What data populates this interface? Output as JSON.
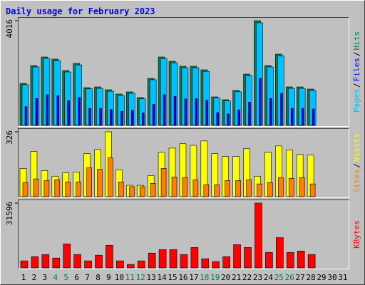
{
  "title": "Daily usage for February 2023",
  "legend_separator": "/",
  "categories": [
    "1",
    "2",
    "3",
    "4",
    "5",
    "6",
    "7",
    "8",
    "9",
    "10",
    "11",
    "12",
    "13",
    "14",
    "15",
    "16",
    "17",
    "18",
    "19",
    "20",
    "21",
    "22",
    "23",
    "24",
    "25",
    "26",
    "27",
    "28",
    "29",
    "30",
    "31"
  ],
  "category_colors": [
    "#000000",
    "#000000",
    "#000000",
    "#008040",
    "#008040",
    "#000000",
    "#000000",
    "#000000",
    "#000000",
    "#000000",
    "#008040",
    "#008040",
    "#000000",
    "#000000",
    "#000000",
    "#000000",
    "#000000",
    "#008040",
    "#008040",
    "#000000",
    "#000000",
    "#000000",
    "#000000",
    "#000000",
    "#008040",
    "#008040",
    "#000000",
    "#000000",
    "#000000",
    "#000000",
    "#000000"
  ],
  "chart_data": [
    {
      "type": "bar",
      "ylim": [
        0,
        4016
      ],
      "yticks": [
        4016
      ],
      "series": [
        {
          "name": "Hits",
          "color": "#00805c",
          "values": [
            1611,
            2295,
            2623,
            2541,
            2104,
            2377,
            1448,
            1475,
            1366,
            1202,
            1284,
            1066,
            1803,
            2623,
            2459,
            2268,
            2268,
            2131,
            1093,
            984,
            1339,
            1967,
            4016,
            2295,
            2732,
            1475,
            1475,
            1393,
            null,
            null,
            null
          ]
        },
        {
          "name": "Pages",
          "color": "#00c0ff",
          "values": [
            1560,
            2240,
            2570,
            2480,
            2050,
            2320,
            1400,
            1420,
            1310,
            1150,
            1230,
            1020,
            1750,
            2560,
            2400,
            2210,
            2210,
            2070,
            1050,
            940,
            1290,
            1910,
            3934,
            2240,
            2670,
            1420,
            1420,
            1340,
            null,
            null,
            null
          ]
        },
        {
          "name": "Files",
          "color": "#0000ff",
          "values": [
            720,
            1030,
            1180,
            1140,
            950,
            1070,
            650,
            660,
            610,
            540,
            580,
            480,
            810,
            1180,
            1110,
            1020,
            1020,
            960,
            490,
            440,
            600,
            890,
            1810,
            1030,
            1230,
            660,
            660,
            630,
            null,
            null,
            null
          ]
        }
      ]
    },
    {
      "type": "bar",
      "ylim": [
        0,
        326
      ],
      "yticks": [
        326
      ],
      "series": [
        {
          "name": "Visits",
          "color": "#ffff00",
          "values": [
            142,
            227,
            131,
            103,
            120,
            124,
            216,
            237,
            326,
            135,
            57,
            57,
            106,
            223,
            244,
            266,
            258,
            280,
            216,
            202,
            202,
            241,
            103,
            223,
            255,
            234,
            212,
            209,
            null,
            null,
            null
          ]
        },
        {
          "name": "Sites",
          "color": "#ff8000",
          "values": [
            71,
            89,
            81,
            85,
            74,
            74,
            145,
            138,
            195,
            74,
            50,
            50,
            67,
            142,
            99,
            96,
            85,
            60,
            60,
            81,
            81,
            85,
            64,
            71,
            96,
            92,
            96,
            64,
            null,
            null,
            null
          ]
        }
      ]
    },
    {
      "type": "bar",
      "ylim": [
        0,
        31596
      ],
      "yticks": [
        31596
      ],
      "series": [
        {
          "name": "KBytes",
          "color": "#ff0000",
          "values": [
            3434,
            5494,
            6525,
            4808,
            11676,
            6525,
            3434,
            6181,
            10989,
            3434,
            1717,
            3434,
            7211,
            8928,
            8928,
            6525,
            9959,
            4464,
            3091,
            5494,
            11332,
            9959,
            31596,
            7555,
            14766,
            7555,
            8242,
            6525,
            null,
            null,
            null
          ]
        }
      ]
    }
  ]
}
